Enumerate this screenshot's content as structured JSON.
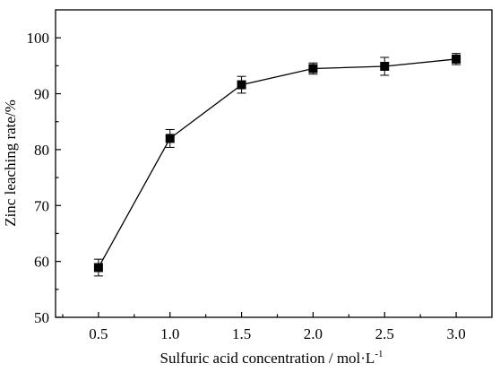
{
  "chart_data": {
    "type": "line",
    "title": "",
    "xlabel_main": "Sulfuric acid concentration / mol·L",
    "xlabel_sup": "-1",
    "ylabel": "Zinc leaching rate/%",
    "xlim": [
      0.2,
      3.25
    ],
    "ylim": [
      50,
      105
    ],
    "x_ticks": [
      "0.5",
      "1.0",
      "1.5",
      "2.0",
      "2.5",
      "3.0"
    ],
    "y_ticks": [
      "50",
      "60",
      "70",
      "80",
      "90",
      "100"
    ],
    "grid": false,
    "legend": "none",
    "marker": "square",
    "color": "#000000",
    "series": [
      {
        "x": [
          0.5,
          1.0,
          1.5,
          2.0,
          2.5,
          3.0
        ],
        "y": [
          58.9,
          82.0,
          91.6,
          94.5,
          94.9,
          96.2
        ],
        "error": [
          1.5,
          1.6,
          1.5,
          1.0,
          1.6,
          1.0
        ]
      }
    ]
  }
}
